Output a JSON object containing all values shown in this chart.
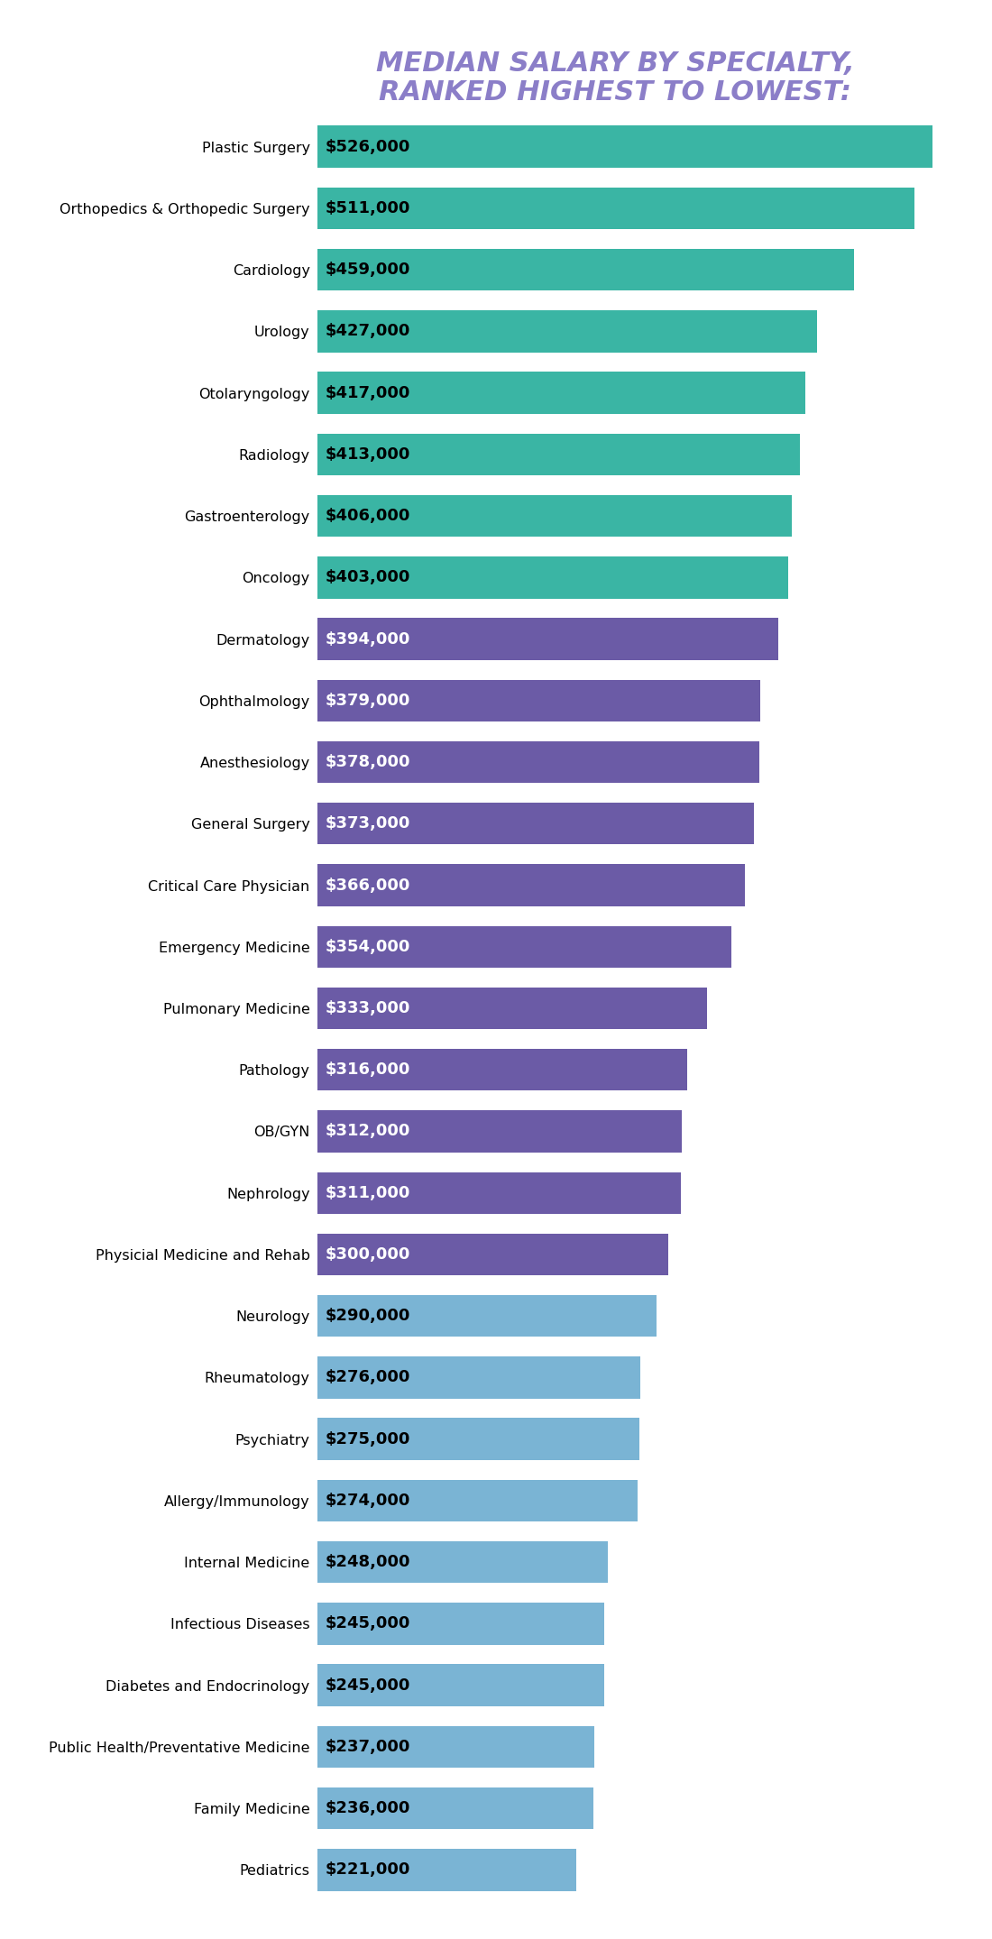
{
  "title_line1": "MEDIAN SALARY BY SPECIALTY,",
  "title_line2": "RANKED HIGHEST TO LOWEST:",
  "title_color": "#8b7ec8",
  "background_color": "#ffffff",
  "categories": [
    "Plastic Surgery",
    "Orthopedics & Orthopedic Surgery",
    "Cardiology",
    "Urology",
    "Otolaryngology",
    "Radiology",
    "Gastroenterology",
    "Oncology",
    "Dermatology",
    "Ophthalmology",
    "Anesthesiology",
    "General Surgery",
    "Critical Care Physician",
    "Emergency Medicine",
    "Pulmonary Medicine",
    "Pathology",
    "OB/GYN",
    "Nephrology",
    "Physicial Medicine and Rehab",
    "Neurology",
    "Rheumatology",
    "Psychiatry",
    "Allergy/Immunology",
    "Internal Medicine",
    "Infectious Diseases",
    "Diabetes and Endocrinology",
    "Public Health/Preventative Medicine",
    "Family Medicine",
    "Pediatrics"
  ],
  "values": [
    526000,
    511000,
    459000,
    427000,
    417000,
    413000,
    406000,
    403000,
    394000,
    379000,
    378000,
    373000,
    366000,
    354000,
    333000,
    316000,
    312000,
    311000,
    300000,
    290000,
    276000,
    275000,
    274000,
    248000,
    245000,
    245000,
    237000,
    236000,
    221000
  ],
  "bar_colors": [
    "#3ab5a4",
    "#3ab5a4",
    "#3ab5a4",
    "#3ab5a4",
    "#3ab5a4",
    "#3ab5a4",
    "#3ab5a4",
    "#3ab5a4",
    "#6b5ba6",
    "#6b5ba6",
    "#6b5ba6",
    "#6b5ba6",
    "#6b5ba6",
    "#6b5ba6",
    "#6b5ba6",
    "#6b5ba6",
    "#6b5ba6",
    "#6b5ba6",
    "#6b5ba6",
    "#7ab4d4",
    "#7ab4d4",
    "#7ab4d4",
    "#7ab4d4",
    "#7ab4d4",
    "#7ab4d4",
    "#7ab4d4",
    "#7ab4d4",
    "#7ab4d4",
    "#7ab4d4"
  ],
  "text_colors": [
    "#000000",
    "#000000",
    "#000000",
    "#000000",
    "#000000",
    "#000000",
    "#000000",
    "#000000",
    "#ffffff",
    "#ffffff",
    "#ffffff",
    "#ffffff",
    "#ffffff",
    "#ffffff",
    "#ffffff",
    "#ffffff",
    "#ffffff",
    "#ffffff",
    "#ffffff",
    "#000000",
    "#000000",
    "#000000",
    "#000000",
    "#000000",
    "#000000",
    "#000000",
    "#000000",
    "#000000",
    "#000000"
  ],
  "xlim": [
    0,
    560000
  ],
  "label_fontsize": 13,
  "category_fontsize": 11.5,
  "title_fontsize": 22,
  "bar_height": 0.68
}
